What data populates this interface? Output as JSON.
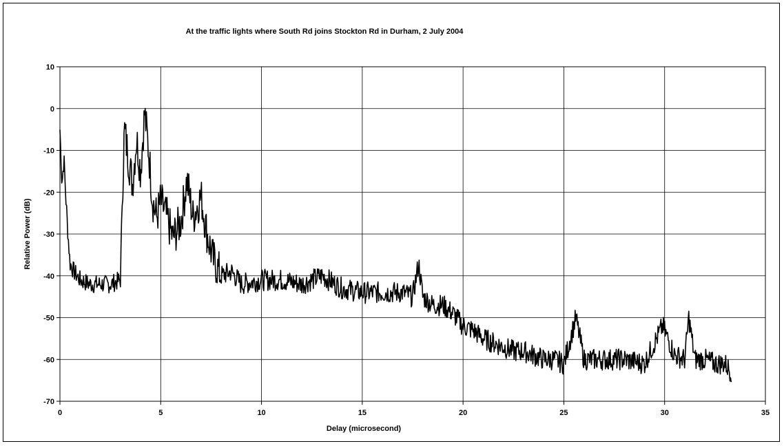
{
  "chart_data": {
    "type": "line",
    "title": "At the traffic lights where South Rd joins Stockton Rd in Durham, 2 July 2004",
    "xlabel": "Delay (microsecond)",
    "ylabel": "Relative Power (dB)",
    "xlim": [
      0,
      35
    ],
    "ylim": [
      -70,
      10
    ],
    "xticks": [
      0,
      5,
      10,
      15,
      20,
      25,
      30,
      35
    ],
    "yticks": [
      10,
      0,
      -10,
      -20,
      -30,
      -40,
      -50,
      -60,
      -70
    ],
    "grid": true,
    "legend": "none",
    "line_color": "#000000",
    "series": [
      {
        "x": [
          0,
          0.1,
          0.2,
          0.3,
          0.4,
          0.5,
          0.7,
          1.0,
          1.5,
          2.0,
          2.5,
          3.0,
          3.1,
          3.2,
          3.4,
          3.6,
          3.8,
          4.0,
          4.2,
          4.4,
          4.6,
          4.8,
          5.0,
          5.3,
          5.6,
          6.0,
          6.3,
          6.6,
          7.0,
          7.3,
          7.6,
          8.0,
          8.5,
          9.0,
          10.0,
          11.0,
          12.0,
          13.0,
          14.0,
          15.0,
          16.0,
          17.0,
          17.5,
          17.8,
          18.0,
          18.5,
          19.0,
          19.5,
          20.0,
          20.5,
          21.0,
          21.5,
          22.0,
          22.5,
          23.0,
          23.5,
          24.0,
          24.5,
          25.0,
          25.6,
          26.0,
          27.0,
          28.0,
          29.0,
          29.9,
          30.5,
          31.0,
          31.2,
          31.5,
          32.0,
          32.5,
          33.0,
          33.3
        ],
        "y": [
          -5,
          -18,
          -12,
          -22,
          -30,
          -37,
          -39,
          -41,
          -42,
          -42,
          -42,
          -41,
          -20,
          -5,
          -12,
          -18,
          -7,
          -15,
          -1,
          -10,
          -22,
          -26,
          -22,
          -26,
          -31,
          -27,
          -17,
          -26,
          -21,
          -30,
          -36,
          -40,
          -39,
          -42,
          -41,
          -41,
          -42,
          -40,
          -43,
          -44,
          -44,
          -44,
          -45,
          -37,
          -45,
          -47,
          -47,
          -49,
          -52,
          -53,
          -55,
          -56,
          -57,
          -58,
          -58,
          -59,
          -60,
          -60,
          -61,
          -50,
          -60,
          -60,
          -60,
          -61,
          -52,
          -59,
          -60,
          -50,
          -60,
          -60,
          -61,
          -61,
          -63
        ]
      }
    ]
  }
}
